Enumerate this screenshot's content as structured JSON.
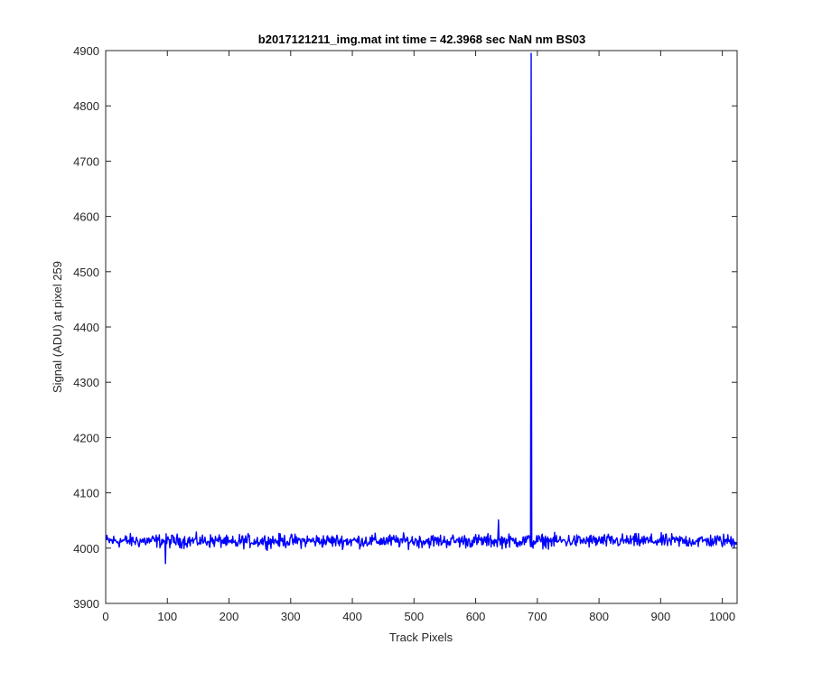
{
  "chart_data": {
    "type": "line",
    "title": "b2017121211_img.mat int time = 42.3968 sec  NaN nm BS03",
    "xlabel": "Track Pixels",
    "ylabel": "Signal (ADU) at pixel 259",
    "xlim": [
      0,
      1024
    ],
    "ylim": [
      3900,
      4900
    ],
    "xticks": [
      0,
      100,
      200,
      300,
      400,
      500,
      600,
      700,
      800,
      900,
      1000
    ],
    "yticks": [
      3900,
      4000,
      4100,
      4200,
      4300,
      4400,
      4500,
      4600,
      4700,
      4800,
      4900
    ],
    "grid": false,
    "line_color": "#0000ff",
    "series": [
      {
        "baseline": 4013,
        "noise_amplitude": 10,
        "length": 1024,
        "notable_points": [
          {
            "x": 96,
            "y": 3972
          },
          {
            "x": 636,
            "y": 4051
          },
          {
            "x": 684,
            "y": 4020
          },
          {
            "x": 689,
            "y": 4895
          },
          {
            "x": 692,
            "y": 4000
          }
        ]
      }
    ]
  }
}
